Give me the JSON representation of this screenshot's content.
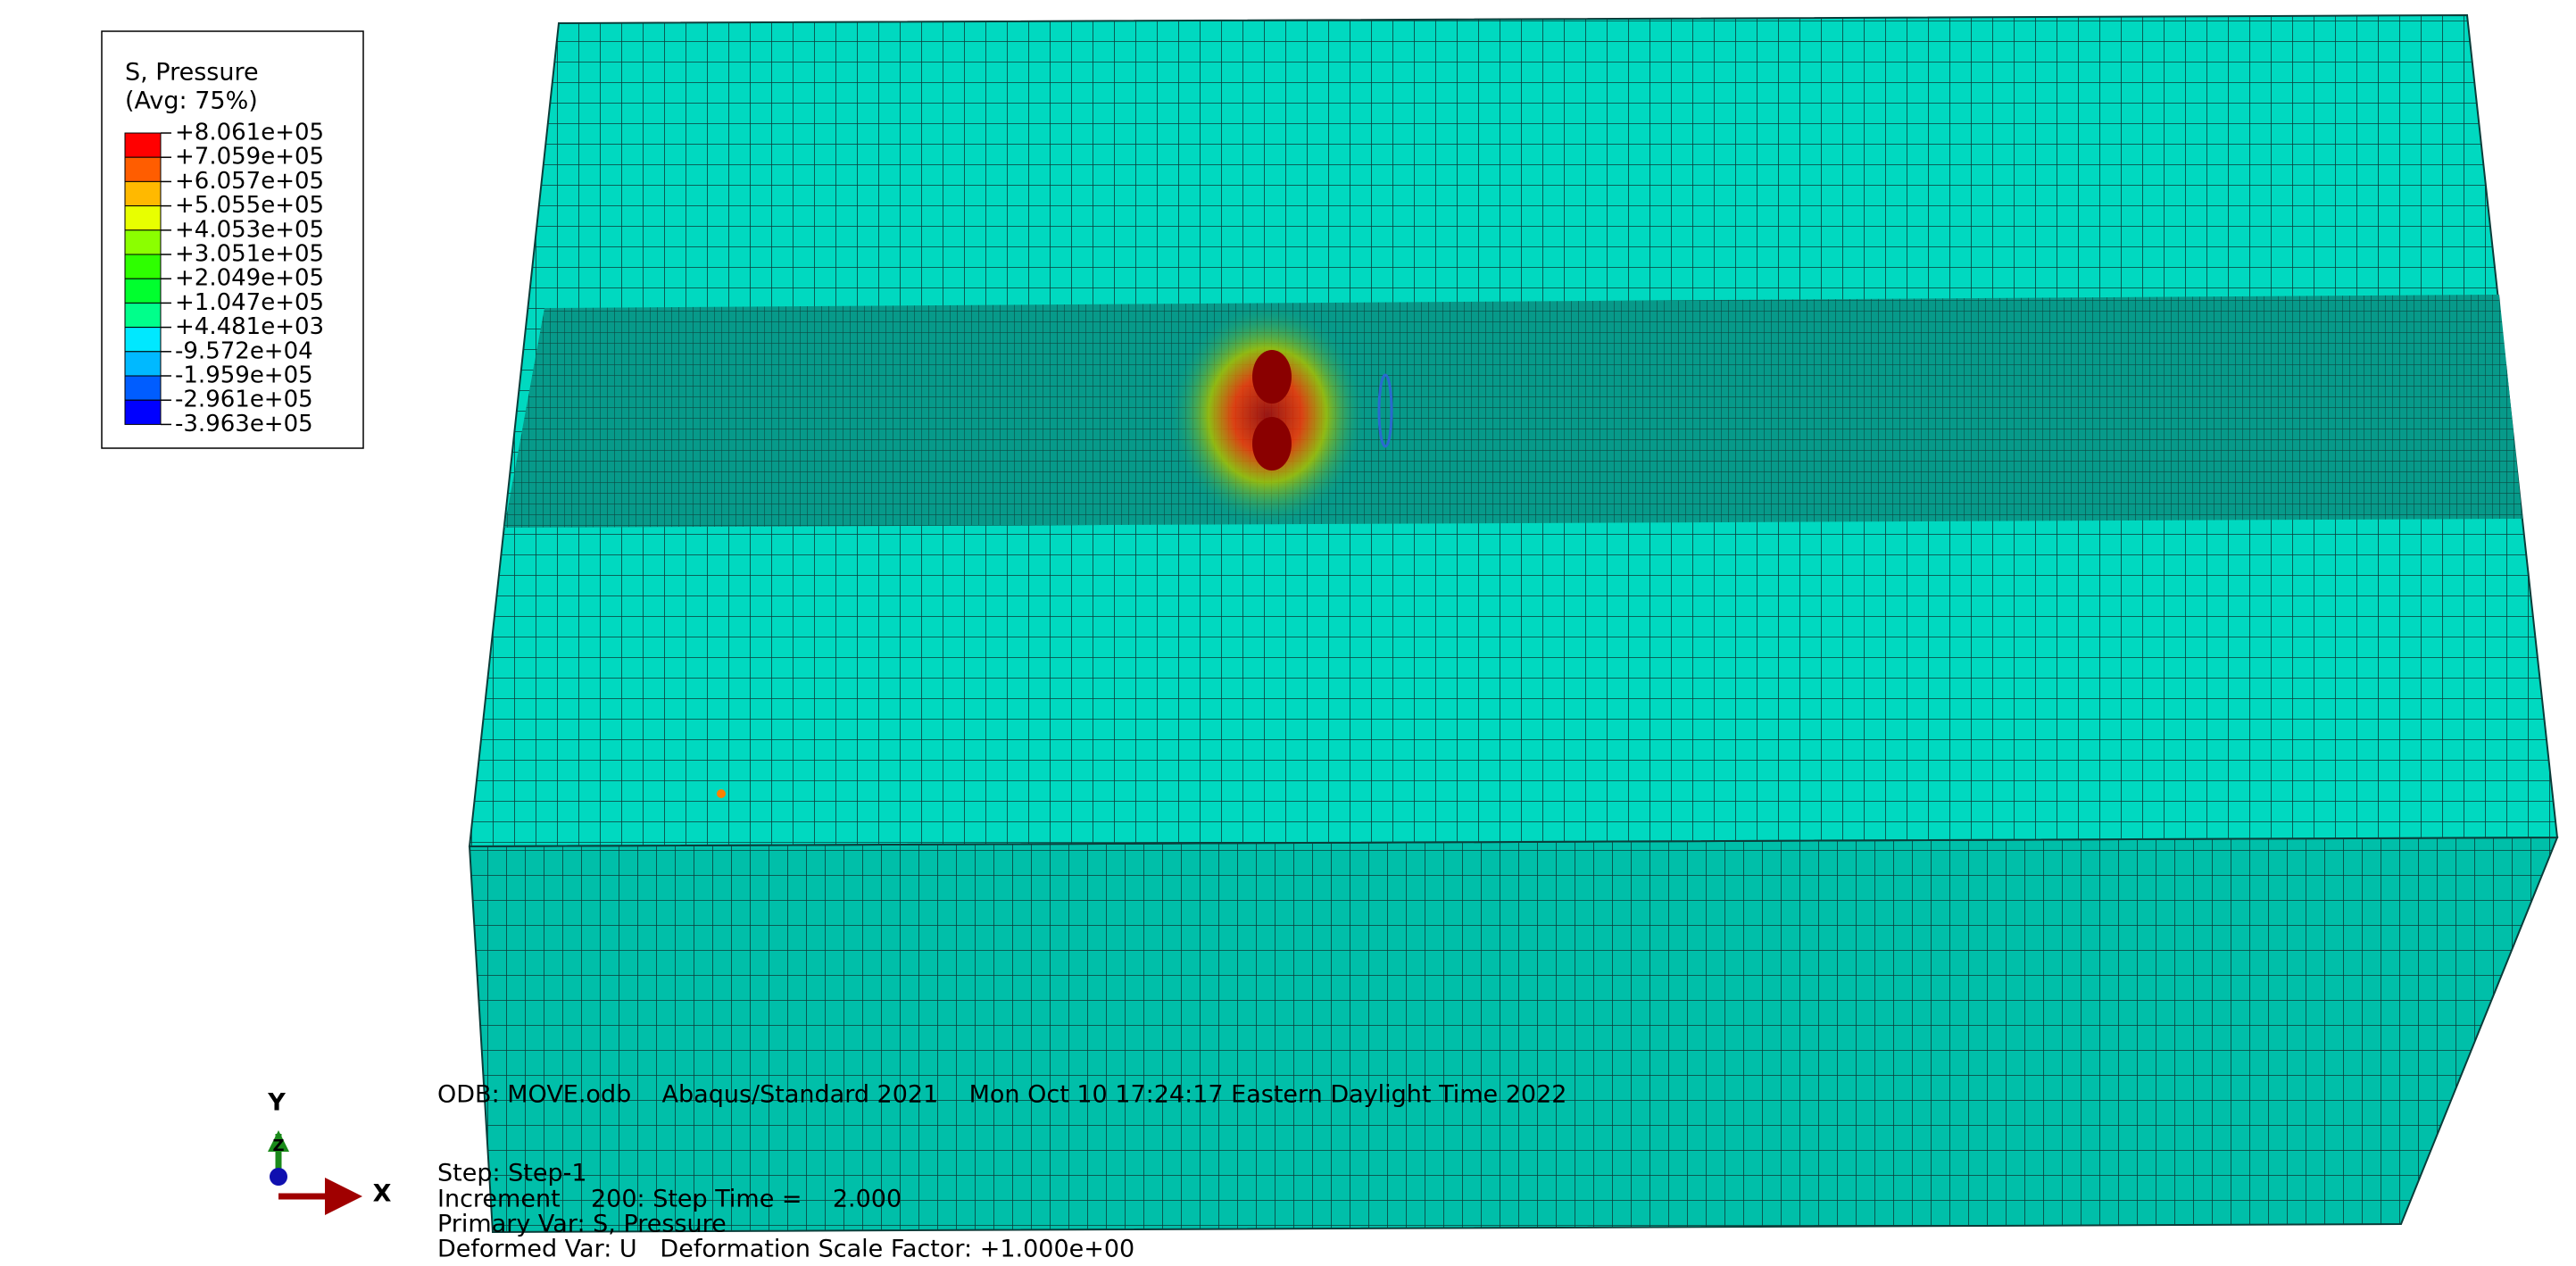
{
  "legend": {
    "title": "S, Pressure",
    "subtitle": "(Avg: 75%)",
    "labels": [
      "+8.061e+05",
      "+7.059e+05",
      "+6.057e+05",
      "+5.055e+05",
      "+4.053e+05",
      "+3.051e+05",
      "+2.049e+05",
      "+1.047e+05",
      "+4.481e+03",
      "-9.572e+04",
      "-1.959e+05",
      "-2.961e+05",
      "-3.963e+05"
    ],
    "colors": [
      "#ff0000",
      "#ff5d00",
      "#ffb900",
      "#e8ff00",
      "#8bff00",
      "#2eff00",
      "#00ff2e",
      "#00ff8b",
      "#00e8ff",
      "#00b9ff",
      "#005dff",
      "#0000ff"
    ]
  },
  "info": {
    "odb_line": "ODB: MOVE.odb    Abaqus/Standard 2021    Mon Oct 10 17:24:17 Eastern Daylight Time 2022",
    "step": "Step: Step-1",
    "increment": "Increment    200: Step Time =    2.000",
    "primary_var": "Primary Var: S, Pressure",
    "deformed_var": "Deformed Var: U   Deformation Scale Factor: +1.000e+00"
  },
  "triad": {
    "y": "Y",
    "z": "Z",
    "x": "X"
  }
}
